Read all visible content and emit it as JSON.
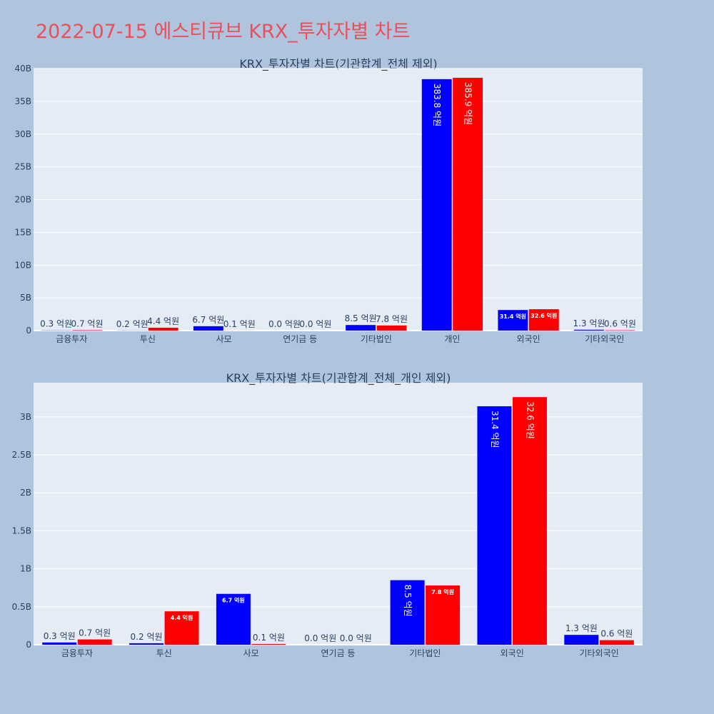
{
  "page": {
    "title": "2022-07-15 에스티큐브 KRX_투자자별 차트"
  },
  "colors": {
    "background": "#b0c4de",
    "plot_bg": "#e5ecf6",
    "title": "#e8505b",
    "buy": "#0000ff",
    "sell": "#ff0000",
    "text": "#2a3f5f"
  },
  "chart_data": [
    {
      "type": "bar",
      "title": "KRX_투자자별 차트(기관합계_전체 제외)",
      "categories": [
        "금융투자",
        "투신",
        "사모",
        "연기금 등",
        "기타법인",
        "개인",
        "외국인",
        "기타외국인"
      ],
      "series": [
        {
          "color": "#0000ff",
          "values": [
            30000000,
            20000000,
            670000000,
            0,
            850000000,
            38380000000,
            3140000000,
            130000000
          ],
          "labels": [
            "0.3 억원",
            "0.2 억원",
            "6.7 억원",
            "0.0 억원",
            "8.5 억원",
            "383.8 억원",
            "31.4 억원",
            "1.3 억원"
          ]
        },
        {
          "color": "#ff0000",
          "values": [
            70000000,
            440000000,
            10000000,
            0,
            780000000,
            38590000000,
            3260000000,
            60000000
          ],
          "labels": [
            "0.7 억원",
            "4.4 억원",
            "0.1 억원",
            "0.0 억원",
            "7.8 억원",
            "385.9 억원",
            "32.6 억원",
            "0.6 억원"
          ]
        }
      ],
      "ylim": [
        0,
        40000000000
      ],
      "yticks": [
        0,
        5000000000,
        10000000000,
        15000000000,
        20000000000,
        25000000000,
        30000000000,
        35000000000,
        40000000000
      ],
      "yticklabels": [
        "0",
        "5B",
        "10B",
        "15B",
        "20B",
        "25B",
        "30B",
        "35B",
        "40B"
      ],
      "grid": true
    },
    {
      "type": "bar",
      "title": "KRX_투자자별 차트(기관합계_전체_개인 제외)",
      "categories": [
        "금융투자",
        "투신",
        "사모",
        "연기금 등",
        "기타법인",
        "외국인",
        "기타외국인"
      ],
      "series": [
        {
          "color": "#0000ff",
          "values": [
            30000000,
            20000000,
            670000000,
            0,
            850000000,
            3140000000,
            130000000
          ],
          "labels": [
            "0.3 억원",
            "0.2 억원",
            "6.7 억원",
            "0.0 억원",
            "8.5 억원",
            "31.4 억원",
            "1.3 억원"
          ]
        },
        {
          "color": "#ff0000",
          "values": [
            70000000,
            440000000,
            10000000,
            0,
            780000000,
            3260000000,
            60000000
          ],
          "labels": [
            "0.7 억원",
            "4.4 억원",
            "0.1 억원",
            "0.0 억원",
            "7.8 억원",
            "32.6 억원",
            "0.6 억원"
          ]
        }
      ],
      "ylim": [
        0,
        3450000000
      ],
      "yticks": [
        0,
        500000000,
        1000000000,
        1500000000,
        2000000000,
        2500000000,
        3000000000
      ],
      "yticklabels": [
        "0",
        "0.5B",
        "1B",
        "1.5B",
        "2B",
        "2.5B",
        "3B"
      ],
      "grid": true
    }
  ]
}
